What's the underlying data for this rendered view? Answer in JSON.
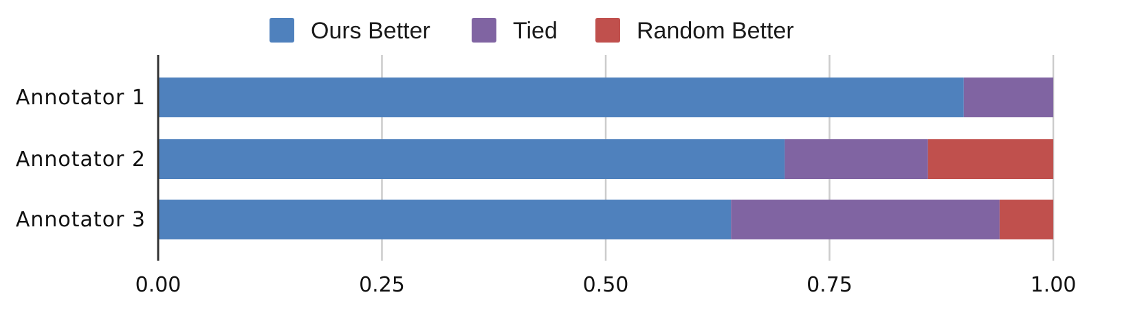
{
  "chart_data": {
    "type": "bar",
    "orientation": "horizontal",
    "stacked": true,
    "title": "",
    "xlabel": "",
    "ylabel": "",
    "xlim": [
      0,
      1
    ],
    "grid": true,
    "legend_position": "top-center",
    "categories": [
      "Annotator 1",
      "Annotator 2",
      "Annotator 3"
    ],
    "x_ticks": [
      "0.00",
      "0.25",
      "0.50",
      "0.75",
      "1.00"
    ],
    "series": [
      {
        "name": "Ours Better",
        "color": "#4f81bd",
        "values": [
          0.9,
          0.7,
          0.64
        ]
      },
      {
        "name": "Tied",
        "color": "#8064a2",
        "values": [
          0.1,
          0.16,
          0.3
        ]
      },
      {
        "name": "Random Better",
        "color": "#c0504d",
        "values": [
          0.0,
          0.14,
          0.06
        ]
      }
    ]
  }
}
